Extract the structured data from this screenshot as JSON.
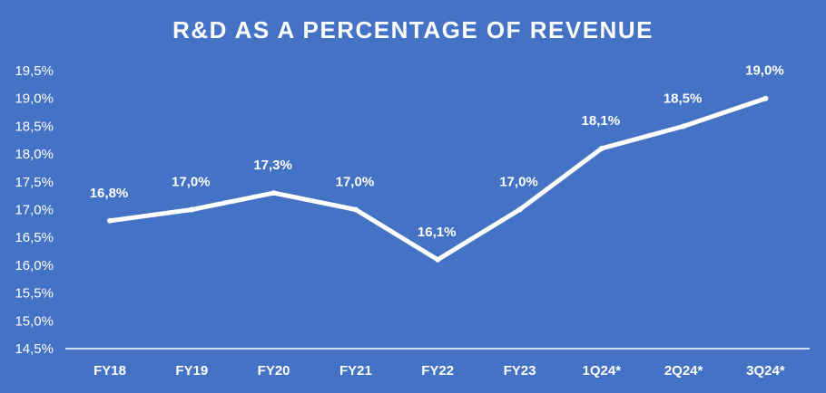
{
  "chart_data": {
    "type": "line",
    "title": "R&D AS A PERCENTAGE OF REVENUE",
    "categories": [
      "FY18",
      "FY19",
      "FY20",
      "FY21",
      "FY22",
      "FY23",
      "1Q24*",
      "2Q24*",
      "3Q24*"
    ],
    "values": [
      16.8,
      17.0,
      17.3,
      17.0,
      16.1,
      17.0,
      18.1,
      18.5,
      19.0
    ],
    "data_labels": [
      "16,8%",
      "17,0%",
      "17,3%",
      "17,0%",
      "16,1%",
      "17,0%",
      "18,1%",
      "18,5%",
      "19,0%"
    ],
    "y_ticks": [
      14.5,
      15.0,
      15.5,
      16.0,
      16.5,
      17.0,
      17.5,
      18.0,
      18.5,
      19.0,
      19.5
    ],
    "y_tick_labels": [
      "14,5%",
      "15,0%",
      "15,5%",
      "16,0%",
      "16,5%",
      "17,0%",
      "17,5%",
      "18,0%",
      "18,5%",
      "19,0%",
      "19,5%"
    ],
    "ylim": [
      14.5,
      19.5
    ],
    "grid": false,
    "drop_lines": true,
    "colors": {
      "background": "#4472C4",
      "line": "#ffffff",
      "text": "#ffffff"
    }
  }
}
